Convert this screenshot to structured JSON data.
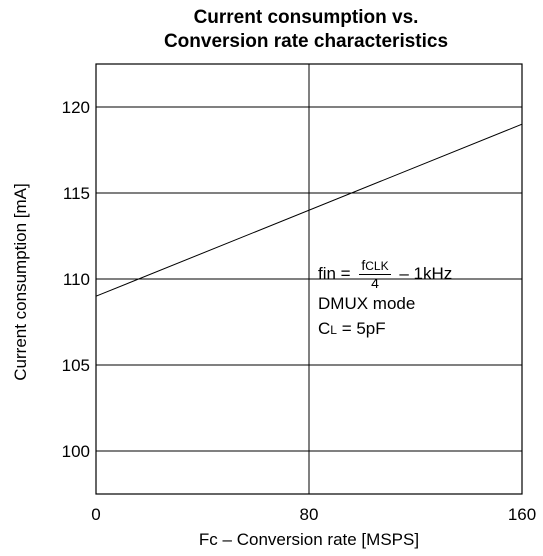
{
  "chart_data": {
    "type": "line",
    "title_line1": "Current consumption vs.",
    "title_line2": "Conversion rate characteristics",
    "xlabel": "Fc – Conversion rate  [MSPS]",
    "ylabel": "Current consumption [mA]",
    "xlim": [
      0,
      160
    ],
    "ylim": [
      97.5,
      122.5
    ],
    "x_ticks": [
      "0",
      "80",
      "160"
    ],
    "y_ticks": [
      "100",
      "105",
      "110",
      "115",
      "120"
    ],
    "x_gridlines": [
      80
    ],
    "y_gridlines": [
      100,
      105,
      110,
      115,
      120
    ],
    "series": [
      {
        "x": [
          0,
          160
        ],
        "y": [
          109,
          119
        ]
      }
    ],
    "annotation": {
      "fin_prefix": "fin =",
      "frac_num": "f",
      "frac_num_sub": "CLK",
      "frac_den": "4",
      "fin_suffix": "– 1kHz",
      "mode": "DMUX mode",
      "cl_main": "C",
      "cl_sub": "L",
      "cl_suffix": " = 5pF"
    }
  }
}
